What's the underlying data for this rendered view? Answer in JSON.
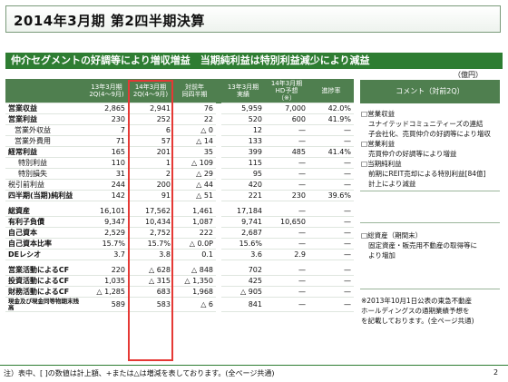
{
  "title": "2014年3月期 第2四半期決算",
  "subtitle": "仲介セグメントの好調等により増収増益　当期純利益は特別利益減少により減益",
  "unit": "（億円）",
  "headers": {
    "c1a": "13年3月期",
    "c1b": "2Q(4～9月)",
    "c2a": "14年3月期",
    "c2b": "2Q(4～9月)",
    "c3a": "対前年",
    "c3b": "同四半期",
    "c4a": "13年3月期",
    "c4b": "実績",
    "c5a": "14年3月期",
    "c5b": "HD予想",
    "c5c": "（※）",
    "c6": "進捗率",
    "comment": "コメント（対前2Q）"
  },
  "rows": [
    [
      "営業収益",
      "2,865",
      "2,941",
      "76",
      "5,959",
      "7,000",
      "42.0%"
    ],
    [
      "営業利益",
      "230",
      "252",
      "22",
      "520",
      "600",
      "41.9%"
    ],
    [
      "営業外収益",
      "7",
      "6",
      "△ 0",
      "12",
      "—",
      "—"
    ],
    [
      "営業外費用",
      "71",
      "57",
      "△ 14",
      "133",
      "—",
      "—"
    ],
    [
      "経常利益",
      "165",
      "201",
      "35",
      "399",
      "485",
      "41.4%"
    ],
    [
      "特別利益",
      "110",
      "1",
      "△ 109",
      "115",
      "—",
      "—"
    ],
    [
      "特別損失",
      "31",
      "2",
      "△ 29",
      "95",
      "—",
      "—"
    ],
    [
      "税引前利益",
      "244",
      "200",
      "△ 44",
      "420",
      "—",
      "—"
    ],
    [
      "四半期(当期)純利益",
      "142",
      "91",
      "△ 51",
      "221",
      "230",
      "39.6%"
    ],
    [
      "総資産",
      "16,101",
      "17,562",
      "1,461",
      "17,184",
      "—",
      "—"
    ],
    [
      "有利子負債",
      "9,347",
      "10,434",
      "1,087",
      "9,741",
      "10,650",
      "—"
    ],
    [
      "自己資本",
      "2,529",
      "2,752",
      "222",
      "2,687",
      "—",
      "—"
    ],
    [
      "自己資本比率",
      "15.7%",
      "15.7%",
      "△ 0.0P",
      "15.6%",
      "—",
      "—"
    ],
    [
      "DEレシオ",
      "3.7",
      "3.8",
      "0.1",
      "3.6",
      "2.9",
      "—"
    ],
    [
      "営業活動によるCF",
      "220",
      "△ 628",
      "△ 848",
      "702",
      "—",
      "—"
    ],
    [
      "投資活動によるCF",
      "1,035",
      "△ 315",
      "△ 1,350",
      "425",
      "—",
      "—"
    ],
    [
      "財務活動によるCF",
      "△ 1,285",
      "683",
      "1,968",
      "△ 905",
      "—",
      "—"
    ],
    [
      "現金及び現金同等物期末残高",
      "589",
      "583",
      "△ 6",
      "841",
      "—",
      "—"
    ]
  ],
  "comments": {
    "g1": [
      "□営業収益",
      "ユナイテッドコミュニティーズの連結",
      "子会社化、売買仲介の好調等により増収",
      "□営業利益",
      "売買仲介の好調等により増益",
      "□当期純利益",
      "前期にREIT売却による特別利益[84億]",
      "計上により減益"
    ],
    "g2": [
      "□総資産（期間末）",
      "固定資産・販売用不動産の取得等に",
      "より増加"
    ],
    "g3": [
      "※2013年10月1日公表の東急不動産",
      "ホールディングスの通期業績予想を",
      "を記載しております。(全ページ共通)"
    ]
  },
  "footer": "注）表中、[ ]の数値は計上額、+または△は増減を表しております。(全ページ共通)",
  "page_number": "2"
}
